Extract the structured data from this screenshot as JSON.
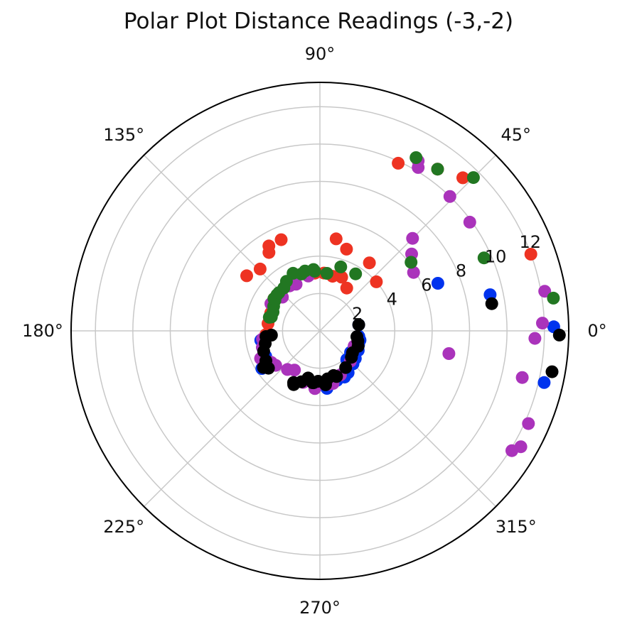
{
  "chart_data": {
    "type": "scatter",
    "projection": "polar",
    "title": "Polar Plot Distance Readings (-3,-2)",
    "angle_unit": "degrees",
    "theta_ticks": [
      0,
      45,
      90,
      135,
      180,
      225,
      270,
      315
    ],
    "theta_tick_labels": [
      "0°",
      "45°",
      "90°",
      "135°",
      "180°",
      "225°",
      "270°",
      "315°"
    ],
    "r_ticks": [
      2,
      4,
      6,
      8,
      10,
      12
    ],
    "r_tick_labels": [
      "2",
      "4",
      "6",
      "8",
      "10",
      "12"
    ],
    "r_label_angle": 22.5,
    "rlim": [
      0,
      13.3
    ],
    "grid": true,
    "legend": "none",
    "series": [
      {
        "color": "#ee3322",
        "points": [
          [
            5.3,
            113
          ],
          [
            5.3,
            121
          ],
          [
            5.0,
            123
          ],
          [
            4.6,
            134
          ],
          [
            4.9,
            143
          ],
          [
            9.9,
            65
          ],
          [
            10.7,
            54
          ],
          [
            11.2,
            47
          ],
          [
            12.0,
            20
          ],
          [
            3.1,
            68
          ],
          [
            3.0,
            77
          ],
          [
            3.1,
            86
          ],
          [
            3.1,
            95
          ],
          [
            3.2,
            103
          ],
          [
            2.7,
            58
          ],
          [
            5.0,
            80
          ],
          [
            4.6,
            72
          ],
          [
            4.5,
            54
          ],
          [
            4.0,
            41
          ],
          [
            3.0,
            145
          ],
          [
            2.8,
            160
          ],
          [
            2.8,
            172
          ],
          [
            2.9,
            184
          ]
        ]
      },
      {
        "color": "#0033ee",
        "points": [
          [
            2.3,
            333
          ],
          [
            2.1,
            313
          ],
          [
            2.6,
            297
          ],
          [
            2.8,
            289
          ],
          [
            3.1,
            277
          ],
          [
            2.0,
            325
          ],
          [
            2.2,
            347
          ],
          [
            2.1,
            352
          ],
          [
            2.1,
            9
          ],
          [
            6.8,
            22
          ],
          [
            9.3,
            12
          ],
          [
            12.5,
            1
          ],
          [
            12.3,
            347
          ],
          [
            3.2,
            189
          ],
          [
            3.2,
            196
          ],
          [
            3.2,
            205
          ],
          [
            3.7,
            213
          ],
          [
            2.8,
            298
          ],
          [
            2.7,
            304
          ],
          [
            2.5,
            315
          ],
          [
            2.4,
            322
          ],
          [
            2.2,
            340
          ]
        ]
      },
      {
        "color": "#aa33bb",
        "points": [
          [
            10.5,
            60
          ],
          [
            10.2,
            59
          ],
          [
            10.0,
            46
          ],
          [
            7.0,
            45
          ],
          [
            5.9,
            32
          ],
          [
            6.4,
            40
          ],
          [
            9.9,
            36
          ],
          [
            12.2,
            10
          ],
          [
            11.9,
            2
          ],
          [
            11.5,
            358
          ],
          [
            11.1,
            347
          ],
          [
            12.2,
            336
          ],
          [
            12.4,
            330
          ],
          [
            12.1,
            328
          ],
          [
            7.0,
            350
          ],
          [
            3.0,
            102
          ],
          [
            2.8,
            117
          ],
          [
            2.9,
            124
          ],
          [
            2.7,
            138
          ],
          [
            3.0,
            151
          ],
          [
            3.1,
            188
          ],
          [
            3.2,
            196
          ],
          [
            3.4,
            206
          ],
          [
            3.1,
            213
          ],
          [
            3.5,
            205
          ],
          [
            2.9,
            279
          ],
          [
            3.1,
            265
          ],
          [
            2.9,
            252
          ],
          [
            2.5,
            237
          ],
          [
            2.7,
            230
          ],
          [
            3.0,
            218
          ],
          [
            2.9,
            284
          ],
          [
            2.6,
            295
          ],
          [
            2.3,
            315
          ],
          [
            2.0,
            336
          ]
        ]
      },
      {
        "color": "#227722",
        "points": [
          [
            10.6,
            61
          ],
          [
            10.7,
            54
          ],
          [
            11.6,
            45
          ],
          [
            12.6,
            8
          ],
          [
            9.6,
            24
          ],
          [
            6.1,
            37
          ],
          [
            3.3,
            96
          ],
          [
            3.2,
            108
          ],
          [
            3.4,
            115
          ],
          [
            3.2,
            124
          ],
          [
            3.0,
            130
          ],
          [
            3.0,
            140
          ],
          [
            2.9,
            146
          ],
          [
            2.8,
            152
          ],
          [
            2.7,
            158
          ],
          [
            2.7,
            164
          ],
          [
            3.0,
            145
          ],
          [
            3.6,
            58
          ],
          [
            3.1,
            83
          ],
          [
            3.2,
            95
          ],
          [
            3.6,
            72
          ],
          [
            3.3,
            104
          ],
          [
            3.0,
            137
          ],
          [
            2.8,
            165
          ]
        ]
      },
      {
        "color": "#000000",
        "points": [
          [
            2.1,
            9
          ],
          [
            2.0,
            351
          ],
          [
            2.2,
            338
          ],
          [
            2.1,
            326
          ],
          [
            2.4,
            305
          ],
          [
            2.6,
            290
          ],
          [
            2.6,
            279
          ],
          [
            2.9,
            276
          ],
          [
            2.8,
            263
          ],
          [
            2.8,
            262
          ],
          [
            2.9,
            250
          ],
          [
            3.1,
            243
          ],
          [
            3.2,
            244
          ],
          [
            3.6,
            213
          ],
          [
            3.3,
            209
          ],
          [
            3.2,
            200
          ],
          [
            3.0,
            193
          ],
          [
            2.9,
            186
          ],
          [
            2.6,
            185
          ],
          [
            9.3,
            9
          ],
          [
            12.8,
            359
          ],
          [
            12.6,
            350
          ],
          [
            3.4,
            216
          ],
          [
            2.6,
            256
          ],
          [
            2.7,
            268
          ],
          [
            2.5,
            287
          ],
          [
            2.2,
            320
          ],
          [
            2.1,
            345
          ]
        ]
      }
    ]
  }
}
